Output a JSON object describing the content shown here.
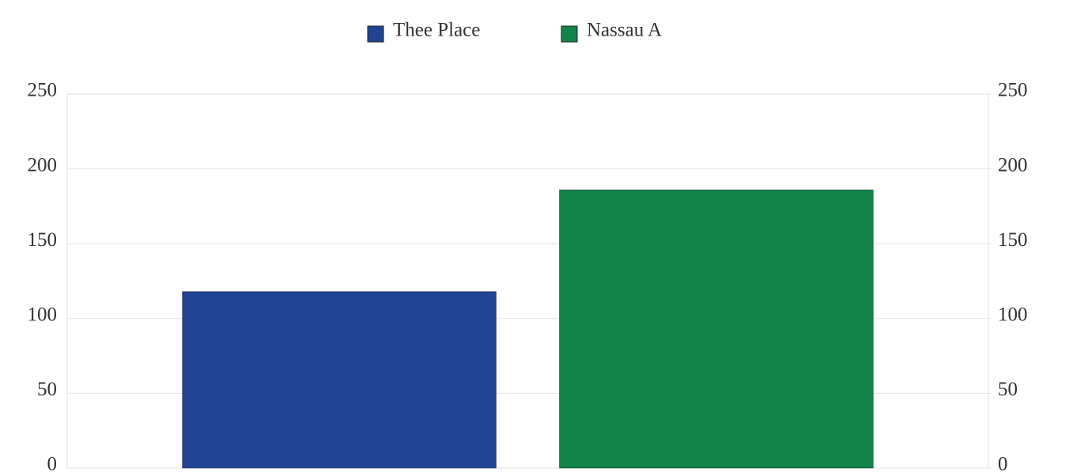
{
  "chart_data": {
    "type": "bar",
    "categories": [
      null
    ],
    "series": [
      {
        "name": "Thee Place",
        "color": "#224394",
        "values": [
          118
        ]
      },
      {
        "name": "Nassau A",
        "color": "#12834a",
        "values": [
          186
        ]
      }
    ],
    "ylim": [
      0,
      250
    ],
    "yticks": [
      0,
      50,
      100,
      150,
      200,
      250
    ],
    "y2lim": [
      0,
      250
    ],
    "y2ticks": [
      0,
      50,
      100,
      150,
      200,
      250
    ],
    "grid": true,
    "legend": "top"
  }
}
